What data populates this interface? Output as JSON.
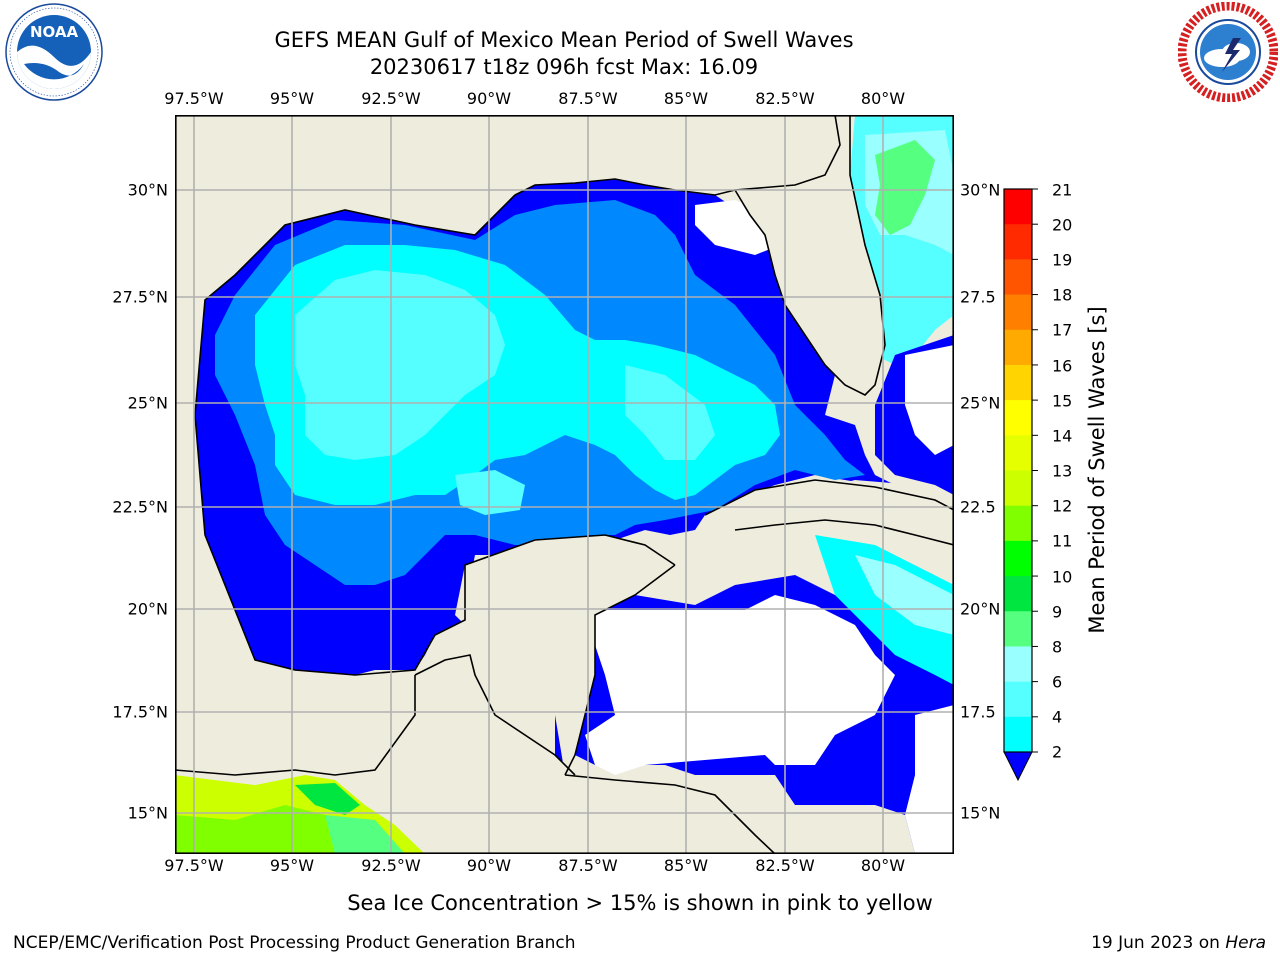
{
  "title": {
    "line1": "GEFS MEAN Gulf of Mexico Mean Period of Swell Waves",
    "line2": "20230617 t18z 096h fcst   Max: 16.09"
  },
  "logos": {
    "left": {
      "name": "noaa-logo",
      "text": "NOAA",
      "ring_text": "NATIONAL OCEANIC AND ATMOSPHERIC ADMINISTRATION · U.S. DEPARTMENT OF COMMERCE"
    },
    "right": {
      "name": "nws-logo",
      "ring_text": "NATIONAL WEATHER SERVICE"
    }
  },
  "map": {
    "lon_ticks": [
      "97.5°W",
      "95°W",
      "92.5°W",
      "90°W",
      "87.5°W",
      "85°W",
      "82.5°W",
      "80°W"
    ],
    "lat_ticks_left": [
      "30°N",
      "27.5°N",
      "25°N",
      "22.5°N",
      "20°N",
      "17.5°N",
      "15°N"
    ],
    "lat_ticks_right": [
      "30°N",
      "27.5",
      "25°N",
      "22.5",
      "20°N",
      "17.5",
      "15°N"
    ],
    "land_color": "#eeecdc",
    "nodata_color": "#ffffff",
    "grid_color": "#b0b0b0"
  },
  "colorbar": {
    "label": "Mean Period of Swell Waves [s]",
    "ticks": [
      "21",
      "20",
      "19",
      "18",
      "17",
      "16",
      "15",
      "14",
      "13",
      "12",
      "11",
      "10",
      "9",
      "8",
      "6",
      "4",
      "2"
    ],
    "colors": [
      "#ff0000",
      "#ff2a00",
      "#ff5500",
      "#ff7f00",
      "#ffaa00",
      "#ffd400",
      "#ffff00",
      "#e6ff00",
      "#ccff00",
      "#80ff00",
      "#00ff00",
      "#00e640",
      "#55ff80",
      "#99ffff",
      "#55ffff",
      "#00ffff",
      "#0088ff",
      "#0000ff"
    ]
  },
  "note": "Sea Ice Concentration > 15% is shown in pink to yellow",
  "footer": {
    "left": "NCEP/EMC/Verification Post Processing Product Generation Branch",
    "right_date": "19 Jun 2023 on ",
    "right_host": "Hera"
  }
}
